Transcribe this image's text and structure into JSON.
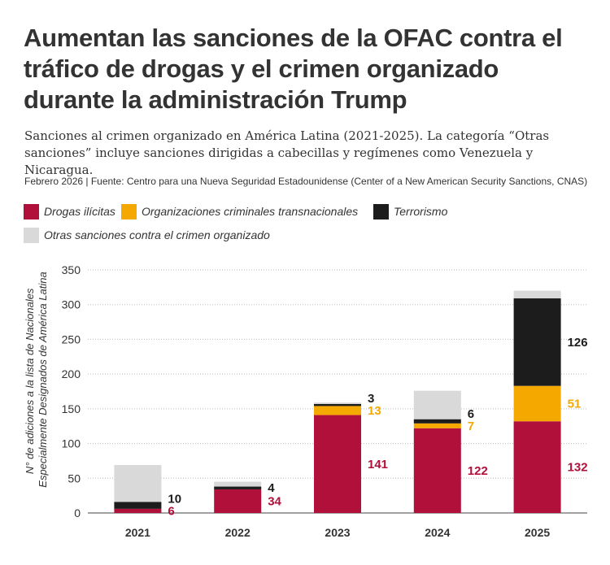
{
  "header": {
    "title": "Aumentan las sanciones de la OFAC contra el tráfico de drogas y el crimen organizado durante la administración Trump",
    "subtitle": "Sanciones al crimen organizado en América Latina (2021-2025). La categoría “Otras sanciones” incluye sanciones dirigidas a cabecillas y regímenes como Venezuela y Nicaragua.",
    "source": "Febrero 2026 | Fuente: Centro para una Nueva Seguridad Estadounidense (Center of a New American Security Sanctions, CNAS)"
  },
  "legend": [
    {
      "label": "Drogas ilícitas",
      "color": "#b0103a"
    },
    {
      "label": "Organizaciones criminales transnacionales",
      "color": "#f5a800"
    },
    {
      "label": "Terrorismo",
      "color": "#1c1c1c"
    },
    {
      "label": "Otras sanciones contra el crimen organizado",
      "color": "#d9d9d9"
    }
  ],
  "chart_data": {
    "type": "bar",
    "stacked": true,
    "categories": [
      "2021",
      "2022",
      "2023",
      "2024",
      "2025"
    ],
    "series": [
      {
        "name": "Drogas ilícitas",
        "color": "#b0103a",
        "values": [
          6,
          34,
          141,
          122,
          132
        ],
        "labels": [
          "6",
          "34",
          "141",
          "122",
          "132"
        ]
      },
      {
        "name": "Organizaciones criminales transnacionales",
        "color": "#f5a800",
        "values": [
          0,
          0,
          13,
          7,
          51
        ],
        "labels": [
          "",
          "",
          "13",
          "7",
          "51"
        ]
      },
      {
        "name": "Terrorismo",
        "color": "#1c1c1c",
        "values": [
          10,
          4,
          3,
          6,
          126
        ],
        "labels": [
          "10",
          "4",
          "3",
          "6",
          "126"
        ]
      },
      {
        "name": "Otras sanciones contra el crimen organizado",
        "color": "#d9d9d9",
        "values": [
          53,
          7,
          2,
          41,
          11
        ],
        "labels": [
          "",
          "",
          "",
          "",
          ""
        ]
      }
    ],
    "ylabel": "N° de adiciones a la lista de Nacionales Especialmente Designados de América Latina",
    "ylabel_lines": [
      "N° de adiciones a la lista de Nacionales",
      "Especialmente Designados de América Latina"
    ],
    "ylim": [
      0,
      350
    ],
    "yticks": [
      0,
      50,
      100,
      150,
      200,
      250,
      300,
      350
    ],
    "grid": true,
    "legend_position": "top"
  }
}
